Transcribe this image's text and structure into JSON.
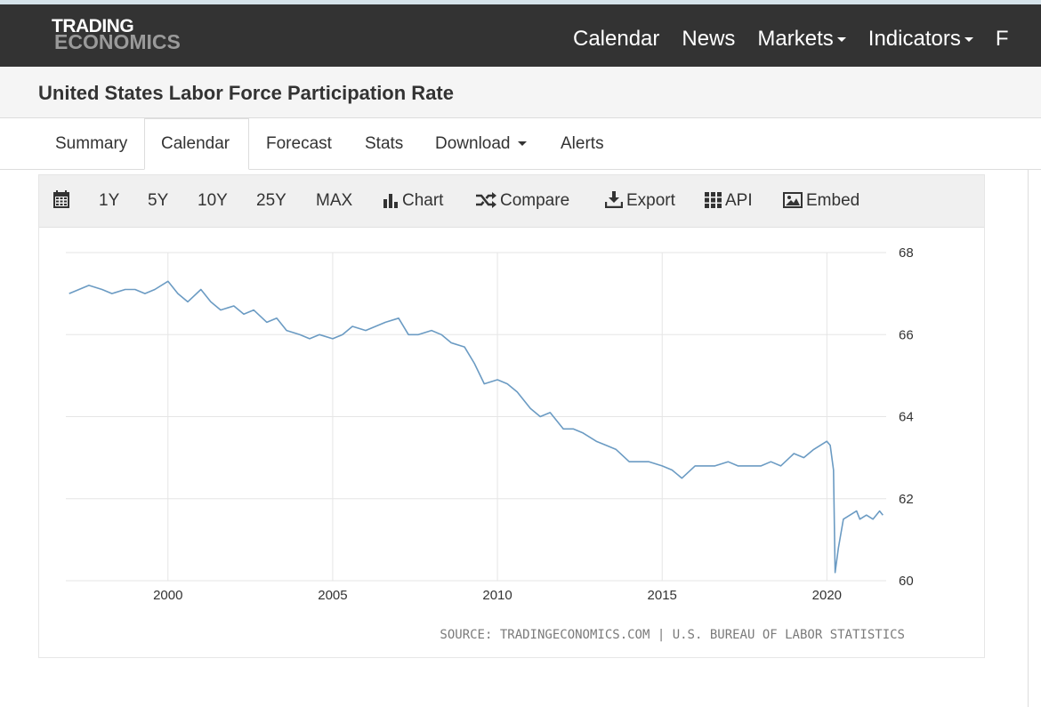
{
  "nav": {
    "logo_line1": "TRADING",
    "logo_line2": "ECONOMICS",
    "items": [
      "Calendar",
      "News",
      "Markets",
      "Indicators",
      "F"
    ]
  },
  "page": {
    "title": "United States Labor Force Participation Rate"
  },
  "tabs": [
    "Summary",
    "Calendar",
    "Forecast",
    "Stats",
    "Download",
    "Alerts"
  ],
  "active_tab": "Calendar",
  "toolbar": {
    "icons": [
      "calendar-icon",
      "bar-chart-icon",
      "compare-arrows-icon",
      "download-icon",
      "grid-icon",
      "image-icon"
    ],
    "ranges": [
      "1Y",
      "5Y",
      "10Y",
      "25Y",
      "MAX"
    ],
    "chart": "Chart",
    "compare": "Compare",
    "export": "Export",
    "api": "API",
    "embed": "Embed"
  },
  "colors": {
    "navbar": "#333333",
    "line": "#6b9bc3",
    "grid": "#e5e5e5"
  },
  "chart_data": {
    "type": "line",
    "title": "",
    "xlabel": "",
    "ylabel": "",
    "xlim": [
      1996.9,
      2021.8
    ],
    "ylim": [
      60,
      68
    ],
    "x_ticks": [
      2000,
      2005,
      2010,
      2015,
      2020
    ],
    "y_ticks": [
      60,
      62,
      64,
      66,
      68
    ],
    "y_axis_side": "right",
    "grid": true,
    "source": "SOURCE: TRADINGECONOMICS.COM | U.S. BUREAU OF LABOR STATISTICS",
    "series": [
      {
        "x": [
          1997.0,
          1997.3,
          1997.6,
          1998.0,
          1998.3,
          1998.7,
          1999.0,
          1999.3,
          1999.6,
          2000.0,
          2000.3,
          2000.6,
          2001.0,
          2001.3,
          2001.6,
          2002.0,
          2002.3,
          2002.6,
          2003.0,
          2003.3,
          2003.6,
          2004.0,
          2004.3,
          2004.6,
          2005.0,
          2005.3,
          2005.6,
          2006.0,
          2006.3,
          2006.6,
          2007.0,
          2007.3,
          2007.6,
          2008.0,
          2008.3,
          2008.6,
          2009.0,
          2009.3,
          2009.6,
          2010.0,
          2010.3,
          2010.6,
          2011.0,
          2011.3,
          2011.6,
          2012.0,
          2012.3,
          2012.6,
          2013.0,
          2013.3,
          2013.6,
          2014.0,
          2014.3,
          2014.6,
          2015.0,
          2015.3,
          2015.6,
          2016.0,
          2016.3,
          2016.6,
          2017.0,
          2017.3,
          2017.6,
          2018.0,
          2018.3,
          2018.6,
          2019.0,
          2019.3,
          2019.6,
          2020.0,
          2020.1,
          2020.2,
          2020.25,
          2020.35,
          2020.5,
          2020.7,
          2020.9,
          2021.0,
          2021.2,
          2021.4,
          2021.6,
          2021.7
        ],
        "values": [
          67.0,
          67.1,
          67.2,
          67.1,
          67.0,
          67.1,
          67.1,
          67.0,
          67.1,
          67.3,
          67.0,
          66.8,
          67.1,
          66.8,
          66.6,
          66.7,
          66.5,
          66.6,
          66.3,
          66.4,
          66.1,
          66.0,
          65.9,
          66.0,
          65.9,
          66.0,
          66.2,
          66.1,
          66.2,
          66.3,
          66.4,
          66.0,
          66.0,
          66.1,
          66.0,
          65.8,
          65.7,
          65.3,
          64.8,
          64.9,
          64.8,
          64.6,
          64.2,
          64.0,
          64.1,
          63.7,
          63.7,
          63.6,
          63.4,
          63.3,
          63.2,
          62.9,
          62.9,
          62.9,
          62.8,
          62.7,
          62.5,
          62.8,
          62.8,
          62.8,
          62.9,
          62.8,
          62.8,
          62.8,
          62.9,
          62.8,
          63.1,
          63.0,
          63.2,
          63.4,
          63.3,
          62.7,
          60.2,
          60.8,
          61.5,
          61.6,
          61.7,
          61.5,
          61.6,
          61.5,
          61.7,
          61.6
        ]
      }
    ]
  }
}
